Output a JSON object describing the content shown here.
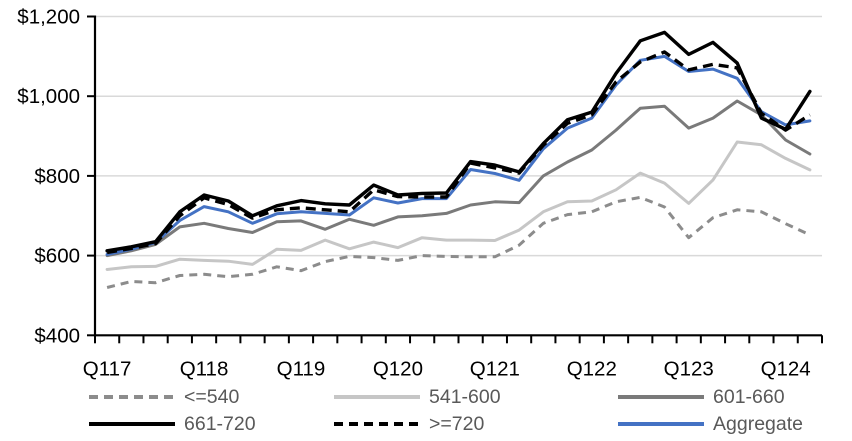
{
  "chart_data": {
    "type": "line",
    "title": "",
    "n_points": 30,
    "categories": [
      "Q117",
      "Q217",
      "Q317",
      "Q417",
      "Q118",
      "Q218",
      "Q318",
      "Q418",
      "Q119",
      "Q219",
      "Q319",
      "Q419",
      "Q120",
      "Q220",
      "Q320",
      "Q420",
      "Q121",
      "Q221",
      "Q321",
      "Q421",
      "Q122",
      "Q222",
      "Q322",
      "Q422",
      "Q123",
      "Q223",
      "Q323",
      "Q423",
      "Q124",
      "Q224"
    ],
    "x_axis": {
      "tick_labels": [
        "Q117",
        "Q118",
        "Q119",
        "Q120",
        "Q121",
        "Q122",
        "Q123",
        "Q124"
      ],
      "label_every_n_points": 4
    },
    "y_axis": {
      "tick_labels": [
        "$1,200",
        "$1,000",
        "$800",
        "$600",
        "$400"
      ],
      "tick_values": [
        1200,
        1000,
        800,
        600,
        400
      ],
      "min": 400,
      "max": 1200,
      "grid": true,
      "grid_color": "#d9d9d9",
      "axis_color": "#000000"
    },
    "series": [
      {
        "name": "<=540",
        "color": "#8c8c8c",
        "style": "dashed",
        "dash": "8 6",
        "values": [
          520,
          535,
          532,
          550,
          553,
          547,
          553,
          572,
          562,
          585,
          598,
          595,
          588,
          600,
          598,
          597,
          597,
          626,
          681,
          703,
          710,
          735,
          746,
          722,
          645,
          695,
          715,
          710,
          680,
          652
        ]
      },
      {
        "name": "541-600",
        "color": "#c6c6c6",
        "style": "solid",
        "dash": null,
        "values": [
          565,
          572,
          573,
          591,
          588,
          586,
          578,
          616,
          613,
          639,
          617,
          634,
          620,
          645,
          639,
          639,
          638,
          664,
          710,
          735,
          737,
          765,
          807,
          782,
          731,
          790,
          885,
          878,
          844,
          815
        ]
      },
      {
        "name": "601-660",
        "color": "#7a7a7a",
        "style": "solid",
        "dash": null,
        "values": [
          600,
          612,
          628,
          672,
          681,
          668,
          658,
          685,
          687,
          666,
          691,
          676,
          697,
          700,
          706,
          727,
          735,
          733,
          800,
          835,
          865,
          915,
          970,
          975,
          920,
          945,
          988,
          953,
          890,
          855
        ]
      },
      {
        "name": "661-720",
        "color": "#000000",
        "style": "solid",
        "dash": null,
        "values": [
          612,
          622,
          635,
          710,
          752,
          737,
          700,
          725,
          738,
          730,
          727,
          777,
          752,
          756,
          757,
          836,
          827,
          810,
          881,
          941,
          960,
          1057,
          1139,
          1160,
          1105,
          1135,
          1083,
          945,
          917,
          1012
        ]
      },
      {
        "name": ">=720",
        "color": "#000000",
        "style": "dashed",
        "dash": "10 6",
        "values": [
          608,
          618,
          630,
          700,
          745,
          728,
          694,
          715,
          720,
          715,
          710,
          765,
          748,
          747,
          747,
          832,
          820,
          807,
          877,
          932,
          953,
          1036,
          1086,
          1111,
          1066,
          1080,
          1071,
          957,
          915,
          953
        ]
      },
      {
        "name": "Aggregate",
        "color": "#4472c4",
        "style": "solid",
        "dash": null,
        "values": [
          603,
          616,
          633,
          688,
          723,
          710,
          681,
          705,
          710,
          706,
          702,
          745,
          732,
          743,
          743,
          816,
          806,
          789,
          868,
          920,
          945,
          1028,
          1090,
          1100,
          1062,
          1068,
          1045,
          961,
          928,
          938
        ]
      }
    ],
    "legend": {
      "position": "bottom",
      "rows": [
        [
          "<=540",
          "541-600",
          "601-660"
        ],
        [
          "661-720",
          ">=720",
          "Aggregate"
        ]
      ]
    }
  }
}
